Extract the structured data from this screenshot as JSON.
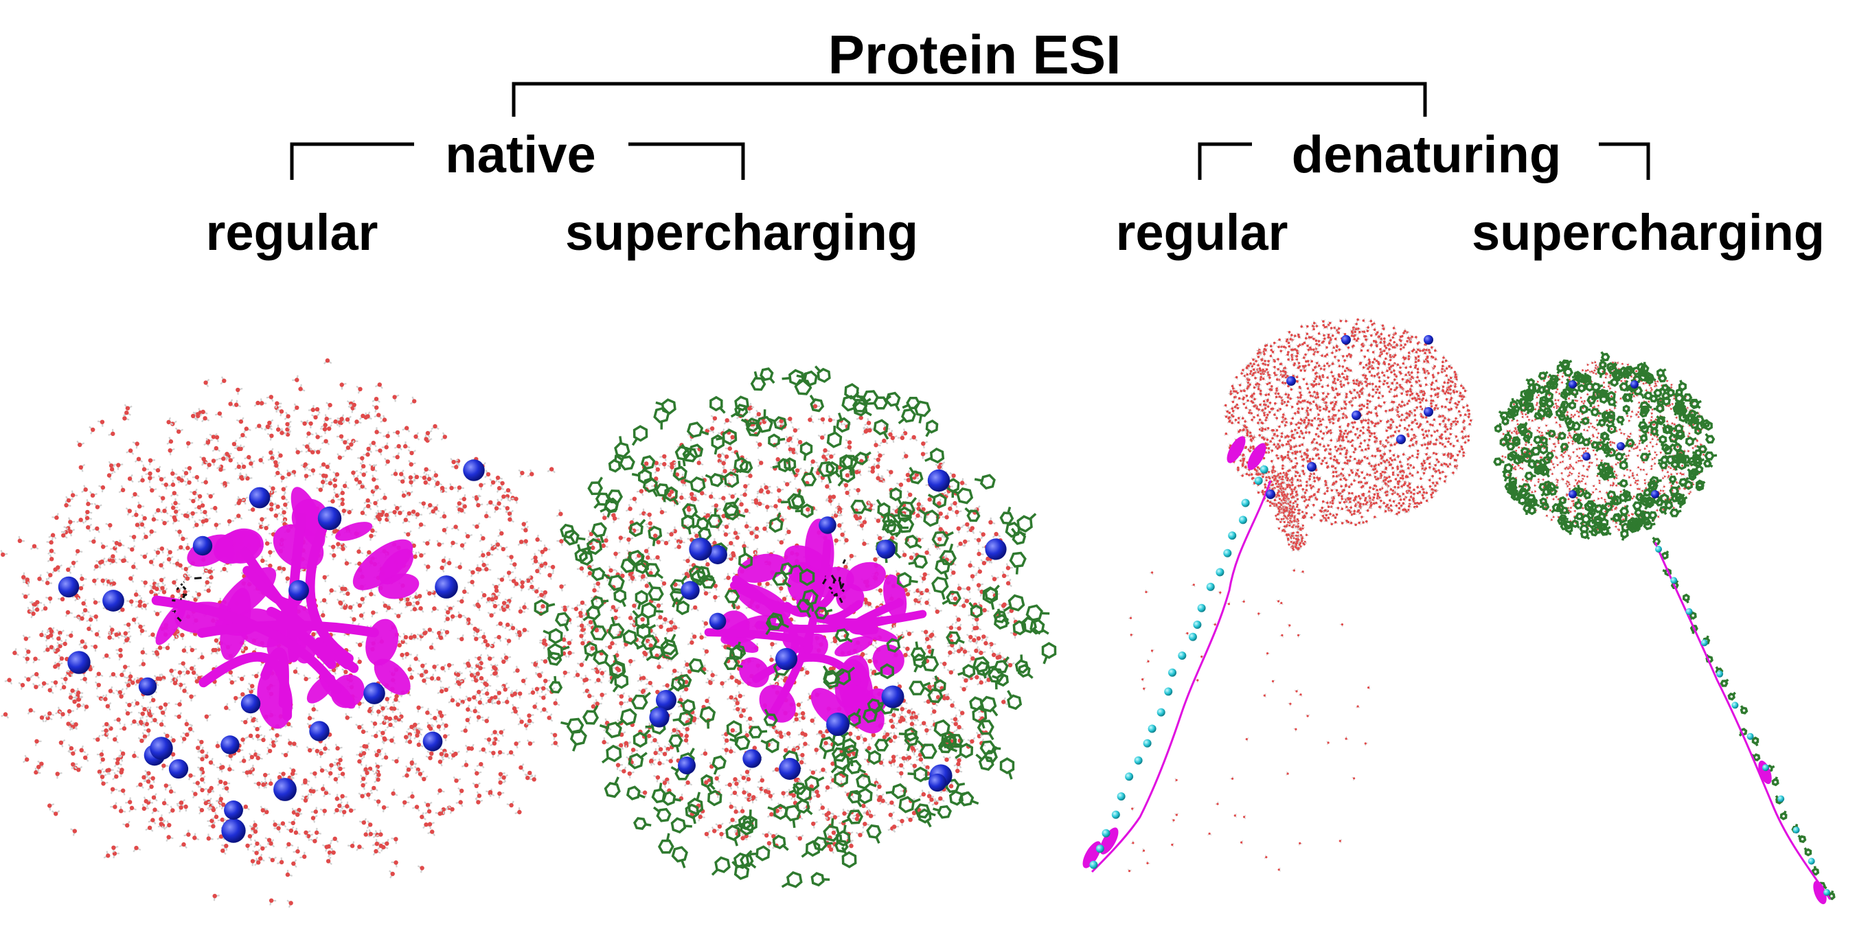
{
  "title": "Protein ESI",
  "groups": [
    {
      "label": "native"
    },
    {
      "label": "denaturing"
    }
  ],
  "conditions": [
    {
      "label": "regular"
    },
    {
      "label": "supercharging"
    },
    {
      "label": "regular"
    },
    {
      "label": "supercharging"
    }
  ],
  "colors": {
    "water_oxygen": "#e04a4a",
    "water_hydrogen": "#f2f2f2",
    "sodium_ion": "#1f2fd6",
    "protein": "#e010e0",
    "supercharging_agent": "#2f7a2f",
    "protein_ion_cyan": "#27c6d6",
    "ligand": "#111111",
    "bracket": "#000000",
    "text": "#000000"
  }
}
